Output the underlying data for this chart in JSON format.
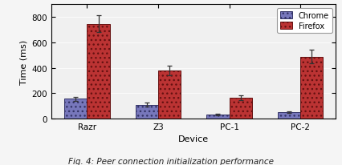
{
  "categories": [
    "Razr",
    "Z3",
    "PC-1",
    "PC-2"
  ],
  "chrome_values": [
    155,
    110,
    32,
    52
  ],
  "firefox_values": [
    745,
    378,
    162,
    488
  ],
  "chrome_errors": [
    18,
    14,
    5,
    8
  ],
  "firefox_errors": [
    65,
    38,
    18,
    52
  ],
  "chrome_color": "#7777bb",
  "firefox_color": "#bb3333",
  "chrome_hatch": "...",
  "firefox_hatch": "...",
  "xlabel": "Device",
  "ylabel": "Time (ms)",
  "ylim": [
    0,
    900
  ],
  "yticks": [
    0,
    200,
    400,
    600,
    800
  ],
  "legend_labels": [
    "Chrome",
    "Firefox"
  ],
  "caption": "Fig. 4: Peer connection initialization performance",
  "bar_width": 0.32,
  "background_color": "#f5f5f5",
  "plot_bg": "#f0f0f0"
}
